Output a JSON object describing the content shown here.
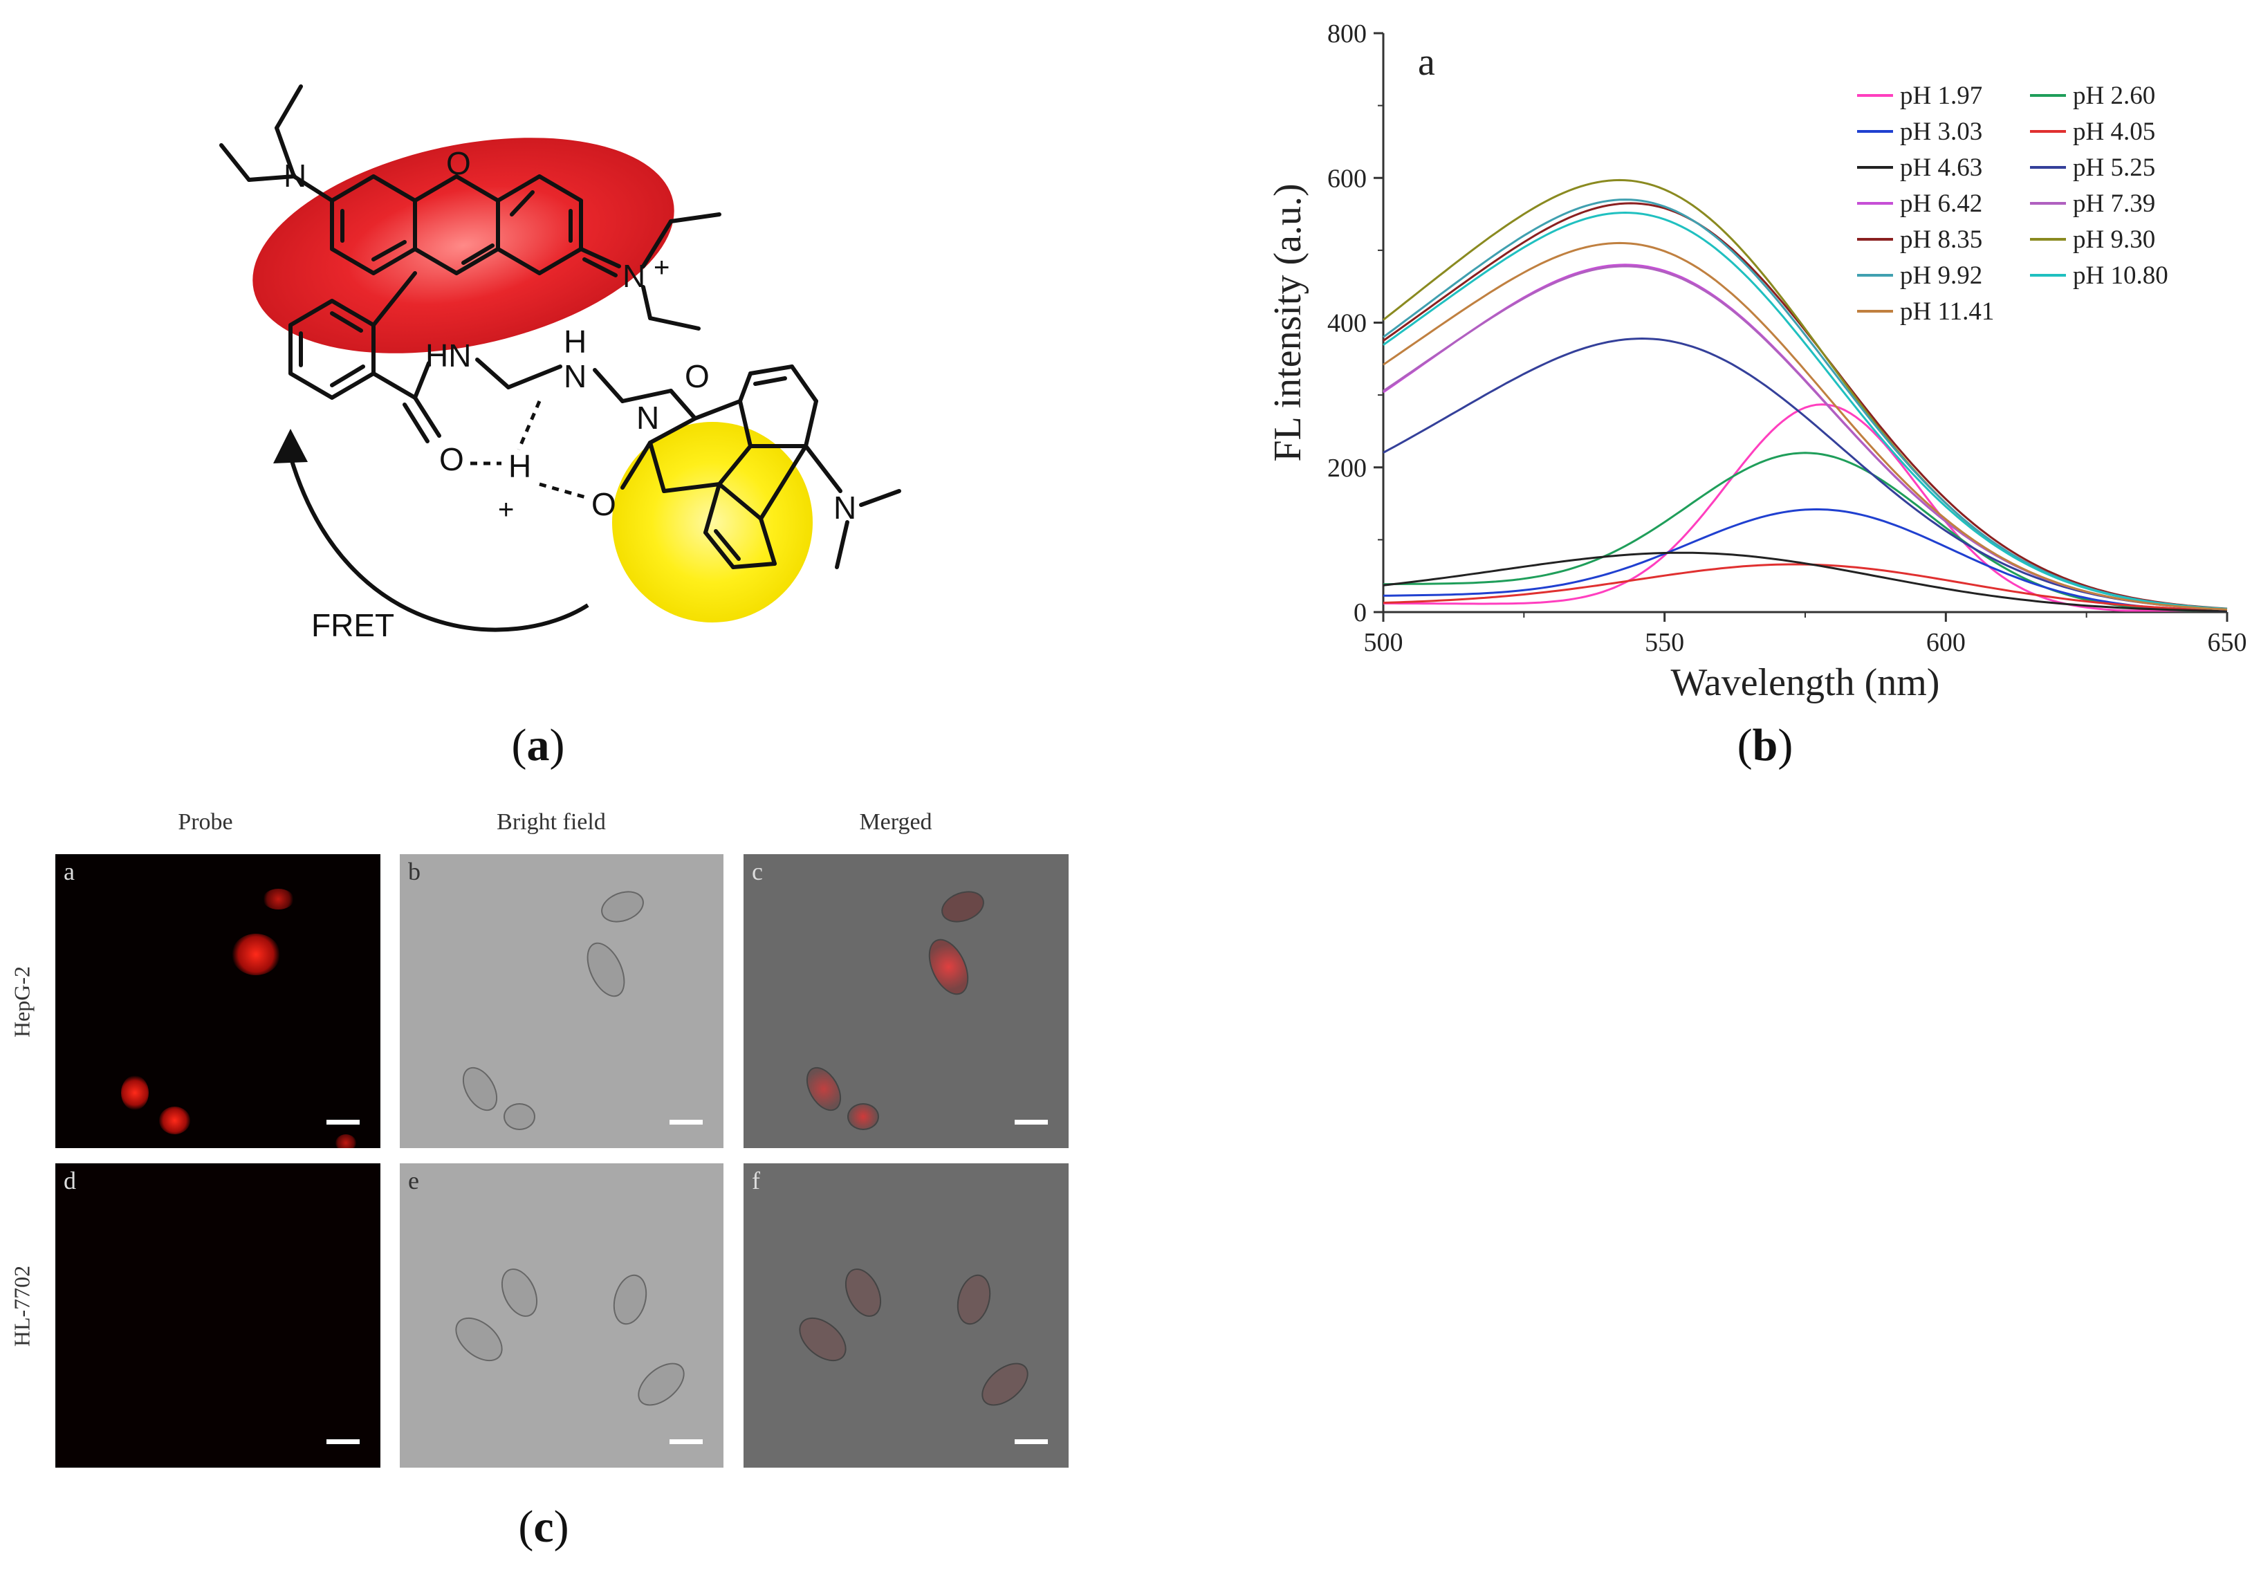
{
  "captions": {
    "a": "a",
    "b": "b",
    "c": "c"
  },
  "structure": {
    "atoms": {
      "n_left": "N",
      "o_ring": "O",
      "n_right": "N",
      "plus_right": "+",
      "hn": "HN",
      "nh_h": "H",
      "nh_n": "N",
      "n_imide": "N",
      "o_top": "O",
      "o_amide": "O",
      "h_bridge": "H",
      "plus_bridge": "+",
      "o_imide": "O",
      "n_dimethyl": "N"
    },
    "arrow_label": "FRET",
    "colors": {
      "rhodamine_glow": "#e8262b",
      "naphthalimide_glow": "#ffef1a"
    }
  },
  "chart_data": {
    "type": "line",
    "panel_letter": "a",
    "title": "",
    "xlabel": "Wavelength (nm)",
    "ylabel": "FL intensity (a.u.)",
    "xlim": [
      500,
      650
    ],
    "ylim": [
      0,
      800
    ],
    "xticks": [
      500,
      550,
      600,
      650
    ],
    "yticks": [
      0,
      200,
      400,
      600,
      800
    ],
    "grid": false,
    "legend_position": "top-right",
    "series": [
      {
        "name": "pH 1.97",
        "color": "#ff3fbf",
        "peak": 578,
        "amp": 287,
        "base": 12,
        "width": 17
      },
      {
        "name": "pH 2.60",
        "color": "#1f9e5a",
        "peak": 575,
        "amp": 220,
        "base": 38,
        "width": 22
      },
      {
        "name": "pH 3.03",
        "color": "#2040d0",
        "peak": 577,
        "amp": 142,
        "base": 22,
        "width": 24
      },
      {
        "name": "pH 4.05",
        "color": "#e03030",
        "peak": 573,
        "amp": 66,
        "base": 10,
        "width": 30
      },
      {
        "name": "pH 4.63",
        "color": "#222222",
        "peak": 553,
        "amp": 82,
        "base": 18,
        "width": 34
      },
      {
        "name": "pH 5.25",
        "color": "#34409a",
        "peak": 546,
        "amp": 378,
        "base": 115,
        "width": 34
      },
      {
        "name": "pH 6.42",
        "color": "#c64fd6",
        "peak": 543,
        "amp": 480,
        "base": 160,
        "width": 34
      },
      {
        "name": "pH 7.39",
        "color": "#b060c0",
        "peak": 543,
        "amp": 478,
        "base": 165,
        "width": 34
      },
      {
        "name": "pH 8.35",
        "color": "#8a2020",
        "peak": 544,
        "amp": 565,
        "base": 230,
        "width": 34
      },
      {
        "name": "pH 9.30",
        "color": "#8a8a20",
        "peak": 542,
        "amp": 597,
        "base": 235,
        "width": 34
      },
      {
        "name": "pH 9.92",
        "color": "#40a0b0",
        "peak": 543,
        "amp": 570,
        "base": 225,
        "width": 34
      },
      {
        "name": "pH 10.80",
        "color": "#20c0c0",
        "peak": 543,
        "amp": 552,
        "base": 220,
        "width": 34
      },
      {
        "name": "pH 11.41",
        "color": "#c08040",
        "peak": 542,
        "amp": 510,
        "base": 195,
        "width": 34
      }
    ]
  },
  "cells": {
    "col_titles": [
      "Probe",
      "Bright field",
      "Merged"
    ],
    "row_titles": [
      "HepG-2",
      "HL-7702"
    ],
    "panels": [
      "a",
      "b",
      "c",
      "d",
      "e",
      "f"
    ]
  }
}
